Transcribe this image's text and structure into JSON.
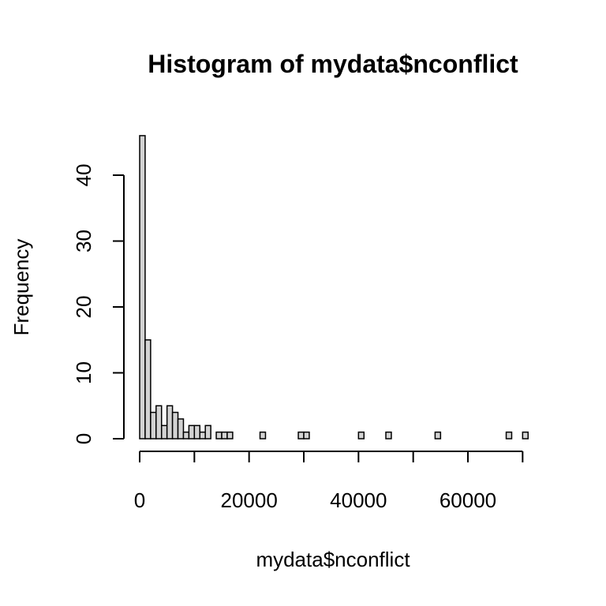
{
  "chart_data": {
    "type": "bar",
    "title": "Histogram of mydata$nconflict",
    "xlabel": "mydata$nconflict",
    "ylabel": "Frequency",
    "bin_width": 1000,
    "bins_start": [
      0,
      1000,
      2000,
      3000,
      4000,
      5000,
      6000,
      7000,
      8000,
      9000,
      10000,
      11000,
      12000,
      13000,
      14000,
      15000,
      16000,
      17000,
      18000,
      19000,
      20000,
      21000,
      22000,
      23000,
      24000,
      25000,
      26000,
      27000,
      28000,
      29000,
      30000,
      31000,
      32000,
      33000,
      34000,
      35000,
      36000,
      37000,
      38000,
      39000,
      40000,
      41000,
      42000,
      43000,
      44000,
      45000,
      46000,
      47000,
      48000,
      49000,
      50000,
      51000,
      52000,
      53000,
      54000,
      55000,
      56000,
      57000,
      58000,
      59000,
      60000,
      61000,
      62000,
      63000,
      64000,
      65000,
      66000,
      67000,
      68000,
      69000,
      70000
    ],
    "values": [
      46,
      15,
      4,
      5,
      2,
      5,
      4,
      3,
      1,
      2,
      2,
      1,
      2,
      0,
      1,
      1,
      1,
      0,
      0,
      0,
      0,
      0,
      1,
      0,
      0,
      0,
      0,
      0,
      0,
      1,
      1,
      0,
      0,
      0,
      0,
      0,
      0,
      0,
      0,
      0,
      1,
      0,
      0,
      0,
      0,
      1,
      0,
      0,
      0,
      0,
      0,
      0,
      0,
      0,
      1,
      0,
      0,
      0,
      0,
      0,
      0,
      0,
      0,
      0,
      0,
      0,
      0,
      1,
      0,
      0,
      1
    ],
    "xlim": [
      0,
      71000
    ],
    "ylim": [
      0,
      46
    ],
    "x_ticks": [
      "0",
      "20000",
      "40000",
      "60000"
    ],
    "y_ticks": [
      "0",
      "10",
      "20",
      "30",
      "40"
    ]
  }
}
